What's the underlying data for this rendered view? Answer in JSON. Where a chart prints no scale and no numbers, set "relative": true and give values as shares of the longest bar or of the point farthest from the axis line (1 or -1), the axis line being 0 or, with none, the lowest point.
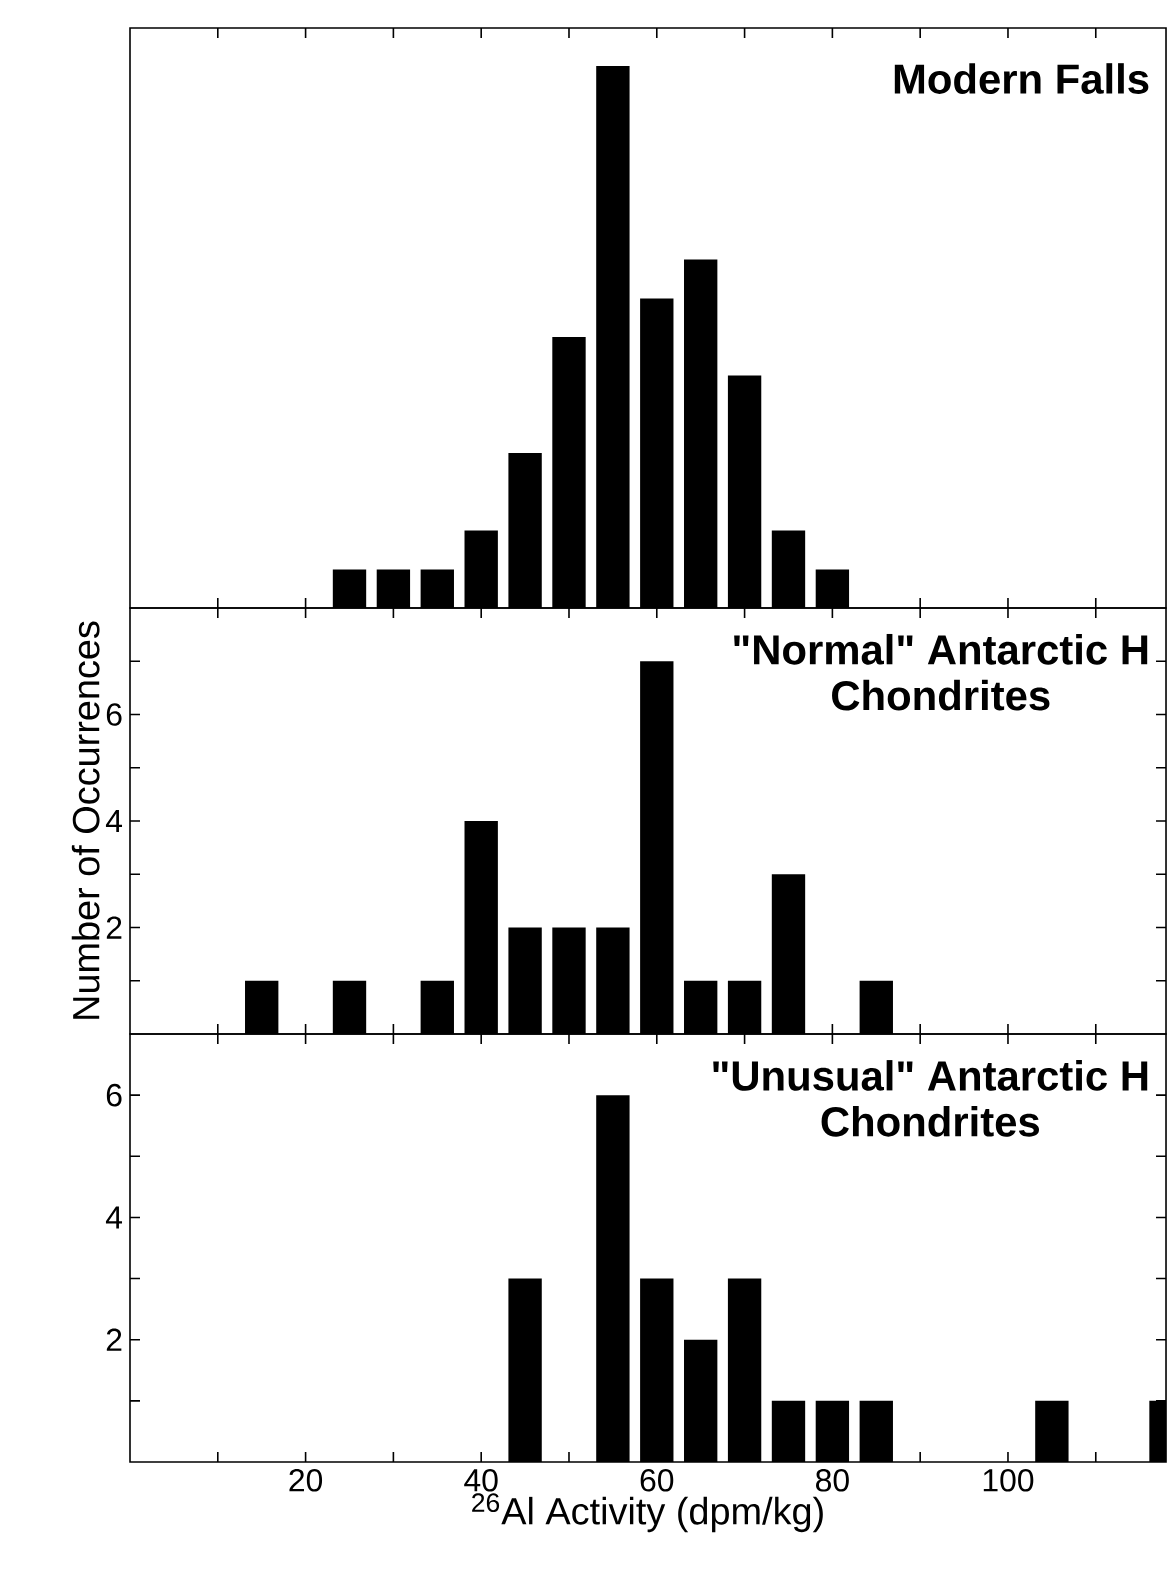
{
  "chart_data": [
    {
      "type": "bar",
      "title": "Modern Falls",
      "relative": true,
      "color": "#000000",
      "tick_labels": false,
      "x": [
        25,
        30,
        35,
        40,
        45,
        50,
        55,
        60,
        65,
        70,
        75,
        80
      ],
      "values": [
        0.071,
        0.071,
        0.071,
        0.143,
        0.286,
        0.5,
        1,
        0.571,
        0.643,
        0.429,
        0.143,
        0.071
      ],
      "xlim": [
        0,
        118
      ],
      "xticks": [
        {
          "value": 10,
          "label": null
        },
        {
          "value": 20,
          "label": null
        },
        {
          "value": 30,
          "label": null
        },
        {
          "value": 40,
          "label": null
        },
        {
          "value": 50,
          "label": null
        },
        {
          "value": 60,
          "label": null
        },
        {
          "value": 70,
          "label": null
        },
        {
          "value": 80,
          "label": null
        },
        {
          "value": 90,
          "label": null
        },
        {
          "value": 100,
          "label": null
        },
        {
          "value": 110,
          "label": null
        }
      ]
    },
    {
      "type": "bar",
      "title": "\"Normal\" Antarctic H Chondrites",
      "ylabel": "Number of Occurrences",
      "color": "#000000",
      "tick_labels": "y",
      "x": [
        15,
        25,
        35,
        40,
        45,
        50,
        55,
        60,
        65,
        70,
        75,
        85
      ],
      "values": [
        1,
        1,
        1,
        4,
        2,
        2,
        2,
        7,
        1,
        1,
        3,
        1
      ],
      "xlim": [
        0,
        118
      ],
      "xticks": [
        {
          "value": 10,
          "label": null
        },
        {
          "value": 20,
          "label": null
        },
        {
          "value": 30,
          "label": null
        },
        {
          "value": 40,
          "label": null
        },
        {
          "value": 50,
          "label": null
        },
        {
          "value": 60,
          "label": null
        },
        {
          "value": 70,
          "label": null
        },
        {
          "value": 80,
          "label": null
        },
        {
          "value": 90,
          "label": null
        },
        {
          "value": 100,
          "label": null
        },
        {
          "value": 110,
          "label": null
        }
      ],
      "ylim": [
        0,
        8
      ],
      "yticks": [
        {
          "value": 1,
          "label": null
        },
        2,
        {
          "value": 3,
          "label": null
        },
        4,
        {
          "value": 5,
          "label": null
        },
        6,
        {
          "value": 7,
          "label": null
        }
      ]
    },
    {
      "type": "bar",
      "title": "\"Unusual\" Antarctic H Chondrites",
      "xlabel": "$^{26}$Al Activity (dpm/kg)",
      "color": "#000000",
      "x": [
        45,
        55,
        60,
        65,
        70,
        75,
        80,
        85,
        105,
        118
      ],
      "values": [
        3,
        6,
        3,
        2,
        3,
        1,
        1,
        1,
        1,
        1
      ],
      "xlim": [
        0,
        118
      ],
      "xticks": [
        {
          "value": 10,
          "label": null
        },
        20,
        {
          "value": 30,
          "label": null
        },
        40,
        {
          "value": 50,
          "label": null
        },
        60,
        {
          "value": 70,
          "label": null
        },
        80,
        {
          "value": 90,
          "label": null
        },
        100,
        {
          "value": 110,
          "label": null
        }
      ],
      "ylim": [
        0,
        7
      ],
      "yticks": [
        {
          "value": 1,
          "label": null
        },
        2,
        {
          "value": 3,
          "label": null
        },
        4,
        {
          "value": 5,
          "label": null
        },
        6
      ]
    }
  ]
}
